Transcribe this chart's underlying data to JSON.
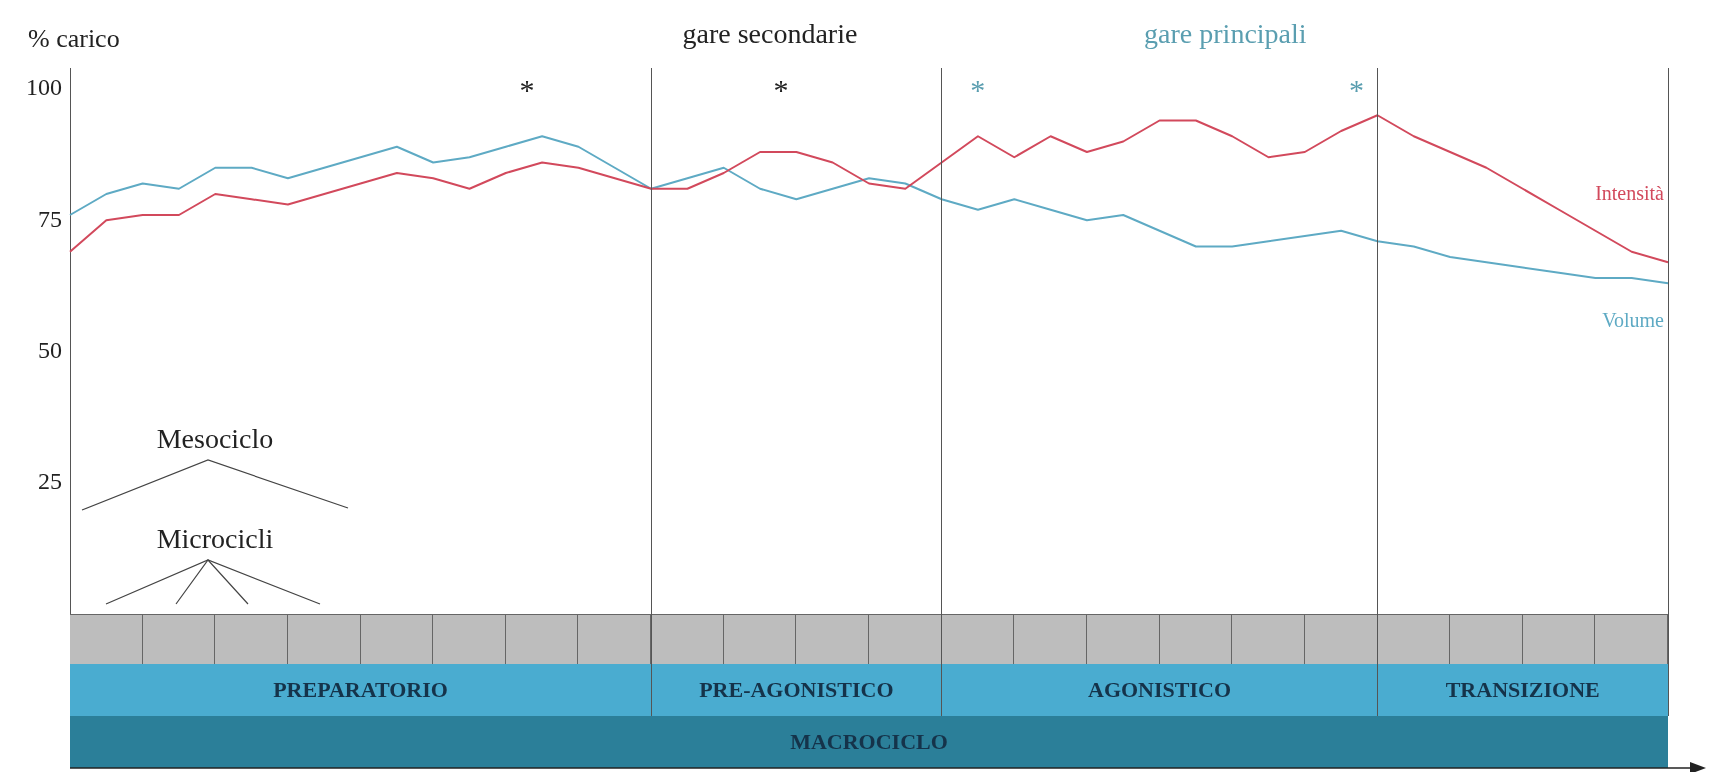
{
  "chart_data": {
    "type": "line",
    "ylabel": "% carico",
    "categories": [
      null,
      null,
      null,
      null,
      null,
      null,
      null,
      null,
      null,
      null,
      null,
      null,
      null,
      null,
      null,
      null,
      null,
      null,
      null,
      null,
      null,
      null,
      null,
      null,
      null,
      null,
      null,
      null,
      null,
      null,
      null,
      null,
      null,
      null,
      null,
      null,
      null,
      null,
      null,
      null,
      null,
      null,
      null,
      null,
      null
    ],
    "ylim": [
      0,
      104
    ],
    "yticks": [
      25,
      50,
      75,
      100
    ],
    "tick_labels": "y",
    "grid": false,
    "legend": false,
    "marker": "none",
    "line_style": "solid",
    "series": [
      {
        "name": "Intensità",
        "color": "#d2495c",
        "values": [
          69,
          75,
          76,
          76,
          80,
          79,
          78,
          80,
          82,
          84,
          83,
          81,
          84,
          86,
          85,
          83,
          81,
          81,
          84,
          88,
          88,
          86,
          82,
          81,
          86,
          91,
          87,
          91,
          88,
          90,
          94,
          94,
          91,
          87,
          88,
          92,
          95,
          91,
          88,
          85,
          81,
          77,
          73,
          69,
          67
        ]
      },
      {
        "name": "Volume",
        "color": "#5eaac4",
        "values": [
          76,
          80,
          82,
          81,
          85,
          85,
          83,
          85,
          87,
          89,
          86,
          87,
          89,
          91,
          89,
          85,
          81,
          83,
          85,
          81,
          79,
          81,
          83,
          82,
          79,
          77,
          79,
          77,
          75,
          76,
          73,
          70,
          70,
          71,
          72,
          73,
          71,
          70,
          68,
          67,
          66,
          65,
          64,
          64,
          63
        ]
      }
    ],
    "annotations": [
      "gare secondarie",
      "gare principali",
      "*",
      "*",
      "*",
      "*",
      "Mesociclo",
      "Microcicli",
      "PREPARATORIO",
      "PRE-AGONISTICO",
      "AGONISTICO",
      "TRANSIZIONE",
      "MACROCICLO"
    ]
  }
}
